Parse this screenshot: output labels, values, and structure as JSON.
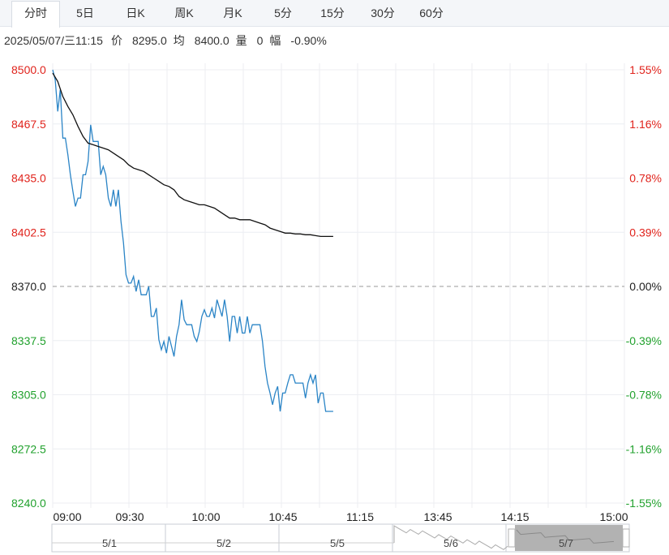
{
  "tabs": [
    {
      "label": "分时",
      "active": true
    },
    {
      "label": "5日",
      "active": false
    },
    {
      "label": "日K",
      "active": false
    },
    {
      "label": "周K",
      "active": false
    },
    {
      "label": "月K",
      "active": false
    },
    {
      "label": "5分",
      "active": false
    },
    {
      "label": "15分",
      "active": false
    },
    {
      "label": "30分",
      "active": false
    },
    {
      "label": "60分",
      "active": false
    }
  ],
  "info": {
    "datetime": "2025/05/07/三11:15",
    "price_label": "价",
    "price": "8295.0",
    "avg_label": "均",
    "avg": "8400.0",
    "vol_label": "量",
    "vol": "0",
    "chg_label": "幅",
    "chg": "-0.90%"
  },
  "colors": {
    "up": "#e0231c",
    "down": "#21a12d",
    "neutral": "#222222",
    "price_line": "#2a84c6",
    "avg_line": "#111111",
    "grid": "#eceef2",
    "nav_shade": "#a5a5a5"
  },
  "chart_data": {
    "type": "line",
    "prev_close": 8370.0,
    "ylim": [
      8240.0,
      8500.0
    ],
    "y_ticks": [
      "8500.0",
      "8467.5",
      "8435.0",
      "8402.5",
      "8370.0",
      "8337.5",
      "8305.0",
      "8272.5",
      "8240.0"
    ],
    "pct_ticks": [
      "1.55%",
      "1.16%",
      "0.78%",
      "0.39%",
      "0.00%",
      "-0.39%",
      "-0.78%",
      "-1.16%",
      "-1.55%"
    ],
    "x_ticks": [
      "09:00",
      "09:30",
      "10:00",
      "10:45",
      "11:15",
      "13:45",
      "14:15",
      "15:00"
    ],
    "series": [
      {
        "key": "price",
        "values": [
          [
            0,
            8500
          ],
          [
            1,
            8494
          ],
          [
            2,
            8475
          ],
          [
            3,
            8488
          ],
          [
            4,
            8459
          ],
          [
            5,
            8459
          ],
          [
            6,
            8449
          ],
          [
            7,
            8437
          ],
          [
            8,
            8427
          ],
          [
            9,
            8418
          ],
          [
            10,
            8423
          ],
          [
            11,
            8423
          ],
          [
            12,
            8437
          ],
          [
            13,
            8437
          ],
          [
            14,
            8445
          ],
          [
            15,
            8467
          ],
          [
            16,
            8457
          ],
          [
            17,
            8457
          ],
          [
            18,
            8457
          ],
          [
            19,
            8437
          ],
          [
            20,
            8442
          ],
          [
            21,
            8437
          ],
          [
            22,
            8423
          ],
          [
            23,
            8418
          ],
          [
            24,
            8428
          ],
          [
            25,
            8418
          ],
          [
            26,
            8428
          ],
          [
            27,
            8409
          ],
          [
            28,
            8396
          ],
          [
            29,
            8377
          ],
          [
            30,
            8372
          ],
          [
            31,
            8372
          ],
          [
            32,
            8376
          ],
          [
            33,
            8367
          ],
          [
            34,
            8374
          ],
          [
            35,
            8365
          ],
          [
            36,
            8365
          ],
          [
            37,
            8365
          ],
          [
            38,
            8370
          ],
          [
            39,
            8352
          ],
          [
            40,
            8352
          ],
          [
            41,
            8357
          ],
          [
            42,
            8338
          ],
          [
            43,
            8332
          ],
          [
            44,
            8337
          ],
          [
            45,
            8330
          ],
          [
            46,
            8340
          ],
          [
            47,
            8334
          ],
          [
            48,
            8328
          ],
          [
            49,
            8340
          ],
          [
            50,
            8347
          ],
          [
            51,
            8362
          ],
          [
            52,
            8350
          ],
          [
            53,
            8347
          ],
          [
            54,
            8347
          ],
          [
            55,
            8347
          ],
          [
            56,
            8340
          ],
          [
            57,
            8337
          ],
          [
            58,
            8343
          ],
          [
            59,
            8352
          ],
          [
            60,
            8356
          ],
          [
            61,
            8352
          ],
          [
            62,
            8352
          ],
          [
            63,
            8357
          ],
          [
            64,
            8351
          ],
          [
            65,
            8362
          ],
          [
            66,
            8357
          ],
          [
            67,
            8352
          ],
          [
            68,
            8362
          ],
          [
            69,
            8352
          ],
          [
            70,
            8337
          ],
          [
            71,
            8352
          ],
          [
            72,
            8352
          ],
          [
            73,
            8342
          ],
          [
            74,
            8352
          ],
          [
            75,
            8342
          ],
          [
            76,
            8342
          ],
          [
            77,
            8352
          ],
          [
            78,
            8342
          ],
          [
            79,
            8347
          ],
          [
            80,
            8347
          ],
          [
            81,
            8347
          ],
          [
            82,
            8347
          ],
          [
            83,
            8337
          ],
          [
            84,
            8322
          ],
          [
            85,
            8312
          ],
          [
            86,
            8306
          ],
          [
            87,
            8299
          ],
          [
            88,
            8306
          ],
          [
            89,
            8310
          ],
          [
            90,
            8295
          ],
          [
            91,
            8306
          ],
          [
            92,
            8306
          ],
          [
            93,
            8312
          ],
          [
            94,
            8317
          ],
          [
            95,
            8317
          ],
          [
            96,
            8312
          ],
          [
            97,
            8312
          ],
          [
            98,
            8312
          ],
          [
            99,
            8312
          ],
          [
            100,
            8303
          ],
          [
            101,
            8312
          ],
          [
            102,
            8317
          ],
          [
            103,
            8312
          ],
          [
            104,
            8317
          ],
          [
            105,
            8300
          ],
          [
            106,
            8306
          ],
          [
            107,
            8306
          ],
          [
            108,
            8295
          ],
          [
            109,
            8295
          ],
          [
            110,
            8295
          ],
          [
            111,
            8295
          ]
        ]
      },
      {
        "key": "avg",
        "values": [
          [
            0,
            8498
          ],
          [
            2,
            8493
          ],
          [
            4,
            8484
          ],
          [
            6,
            8478
          ],
          [
            8,
            8473
          ],
          [
            10,
            8466
          ],
          [
            12,
            8460
          ],
          [
            14,
            8456
          ],
          [
            16,
            8455
          ],
          [
            18,
            8454
          ],
          [
            20,
            8453
          ],
          [
            22,
            8452
          ],
          [
            24,
            8450
          ],
          [
            26,
            8448
          ],
          [
            28,
            8446
          ],
          [
            30,
            8443
          ],
          [
            32,
            8441
          ],
          [
            34,
            8440
          ],
          [
            36,
            8439
          ],
          [
            38,
            8437
          ],
          [
            40,
            8435
          ],
          [
            42,
            8433
          ],
          [
            44,
            8431
          ],
          [
            46,
            8430
          ],
          [
            48,
            8428
          ],
          [
            50,
            8424
          ],
          [
            52,
            8422
          ],
          [
            54,
            8421
          ],
          [
            56,
            8420
          ],
          [
            58,
            8419
          ],
          [
            60,
            8419
          ],
          [
            62,
            8418
          ],
          [
            64,
            8417
          ],
          [
            66,
            8415
          ],
          [
            68,
            8413
          ],
          [
            70,
            8411
          ],
          [
            72,
            8411
          ],
          [
            74,
            8410
          ],
          [
            76,
            8410
          ],
          [
            78,
            8410
          ],
          [
            80,
            8409
          ],
          [
            82,
            8408
          ],
          [
            84,
            8407
          ],
          [
            86,
            8405
          ],
          [
            88,
            8404
          ],
          [
            90,
            8403
          ],
          [
            92,
            8402
          ],
          [
            94,
            8402
          ],
          [
            96,
            8401.5
          ],
          [
            98,
            8401.5
          ],
          [
            100,
            8401
          ],
          [
            102,
            8401
          ],
          [
            104,
            8400.5
          ],
          [
            106,
            8400
          ],
          [
            108,
            8400
          ],
          [
            111,
            8400
          ]
        ]
      }
    ]
  },
  "navigator": {
    "days": [
      "5/1",
      "5/2",
      "5/5",
      "5/6",
      "5/7"
    ]
  }
}
